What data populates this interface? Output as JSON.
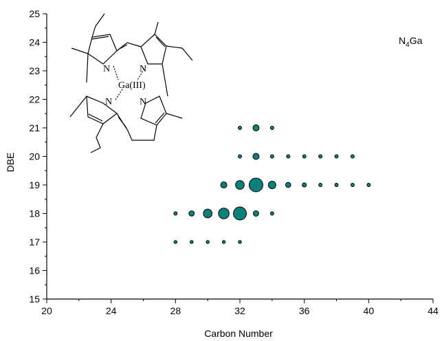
{
  "chart_data": {
    "type": "scatter",
    "subtype": "bubble",
    "title": "",
    "xlabel": "Carbon Number",
    "ylabel": "DBE",
    "xlim": [
      20,
      44
    ],
    "ylim": [
      15,
      25
    ],
    "xticks": [
      20,
      24,
      28,
      32,
      36,
      40,
      44
    ],
    "yticks": [
      15,
      16,
      17,
      18,
      19,
      20,
      21,
      22,
      23,
      24,
      25
    ],
    "grid": false,
    "legend": "none",
    "marker_color": "#0f7f7c",
    "annotation": {
      "prefix": "N",
      "sub": "4",
      "suffix": "Ga"
    },
    "points": [
      {
        "x": 28,
        "y": 17,
        "s": 0.5
      },
      {
        "x": 29,
        "y": 17,
        "s": 0.5
      },
      {
        "x": 30,
        "y": 17,
        "s": 0.5
      },
      {
        "x": 31,
        "y": 17,
        "s": 0.5
      },
      {
        "x": 32,
        "y": 17,
        "s": 0.5
      },
      {
        "x": 28,
        "y": 18,
        "s": 0.6
      },
      {
        "x": 29,
        "y": 18,
        "s": 1.5
      },
      {
        "x": 30,
        "y": 18,
        "s": 4
      },
      {
        "x": 31,
        "y": 18,
        "s": 6
      },
      {
        "x": 32,
        "y": 18,
        "s": 9
      },
      {
        "x": 33,
        "y": 18,
        "s": 1.6
      },
      {
        "x": 34,
        "y": 18,
        "s": 0.6
      },
      {
        "x": 31,
        "y": 19,
        "s": 2
      },
      {
        "x": 32,
        "y": 19,
        "s": 4
      },
      {
        "x": 33,
        "y": 19,
        "s": 10
      },
      {
        "x": 34,
        "y": 19,
        "s": 3
      },
      {
        "x": 35,
        "y": 19,
        "s": 1.4
      },
      {
        "x": 36,
        "y": 19,
        "s": 0.9
      },
      {
        "x": 37,
        "y": 19,
        "s": 0.6
      },
      {
        "x": 38,
        "y": 19,
        "s": 0.6
      },
      {
        "x": 39,
        "y": 19,
        "s": 0.6
      },
      {
        "x": 40,
        "y": 19,
        "s": 0.6
      },
      {
        "x": 32,
        "y": 20,
        "s": 0.6
      },
      {
        "x": 33,
        "y": 20,
        "s": 2
      },
      {
        "x": 34,
        "y": 20,
        "s": 0.6
      },
      {
        "x": 35,
        "y": 20,
        "s": 0.6
      },
      {
        "x": 36,
        "y": 20,
        "s": 0.6
      },
      {
        "x": 37,
        "y": 20,
        "s": 0.6
      },
      {
        "x": 38,
        "y": 20,
        "s": 0.6
      },
      {
        "x": 39,
        "y": 20,
        "s": 0.6
      },
      {
        "x": 32,
        "y": 21,
        "s": 0.6
      },
      {
        "x": 33,
        "y": 21,
        "s": 2
      },
      {
        "x": 34,
        "y": 21,
        "s": 0.6
      }
    ],
    "inset_structure": {
      "atom_labels": [
        "N",
        "N",
        "N",
        "N"
      ],
      "metal_label": "Ga(III)"
    }
  }
}
